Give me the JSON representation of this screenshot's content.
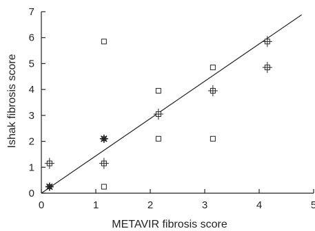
{
  "chart_data": {
    "type": "scatter",
    "title": "",
    "xlabel": "METAVIR fibrosis score",
    "ylabel": "Ishak fibrosis score",
    "xlim": [
      0,
      5
    ],
    "ylim": [
      0,
      7
    ],
    "x_ticks": [
      "0",
      "1",
      "2",
      "3",
      "4",
      "5"
    ],
    "y_ticks": [
      "0",
      "1",
      "2",
      "3",
      "4",
      "5",
      "6",
      "7"
    ],
    "grid": false,
    "legend": "none",
    "points": [
      {
        "x": 0.15,
        "y": 1.15,
        "marker": "square-cross"
      },
      {
        "x": 0.15,
        "y": 0.25,
        "marker": "star"
      },
      {
        "x": 1.15,
        "y": 5.85,
        "marker": "square"
      },
      {
        "x": 1.15,
        "y": 2.1,
        "marker": "star"
      },
      {
        "x": 1.15,
        "y": 1.15,
        "marker": "square-cross"
      },
      {
        "x": 1.15,
        "y": 0.25,
        "marker": "square"
      },
      {
        "x": 2.15,
        "y": 3.95,
        "marker": "square"
      },
      {
        "x": 2.15,
        "y": 3.05,
        "marker": "square-cross"
      },
      {
        "x": 2.15,
        "y": 2.1,
        "marker": "square"
      },
      {
        "x": 3.15,
        "y": 4.85,
        "marker": "square"
      },
      {
        "x": 3.15,
        "y": 3.95,
        "marker": "square-cross"
      },
      {
        "x": 3.15,
        "y": 2.1,
        "marker": "square"
      },
      {
        "x": 4.15,
        "y": 5.85,
        "marker": "square-cross"
      },
      {
        "x": 4.15,
        "y": 4.85,
        "marker": "square-cross"
      }
    ],
    "fit_line": {
      "x": [
        0,
        4.78
      ],
      "y": [
        0,
        6.88
      ]
    },
    "colors": {
      "axis": "#222222",
      "marker": "#222222",
      "line": "#222222"
    }
  }
}
